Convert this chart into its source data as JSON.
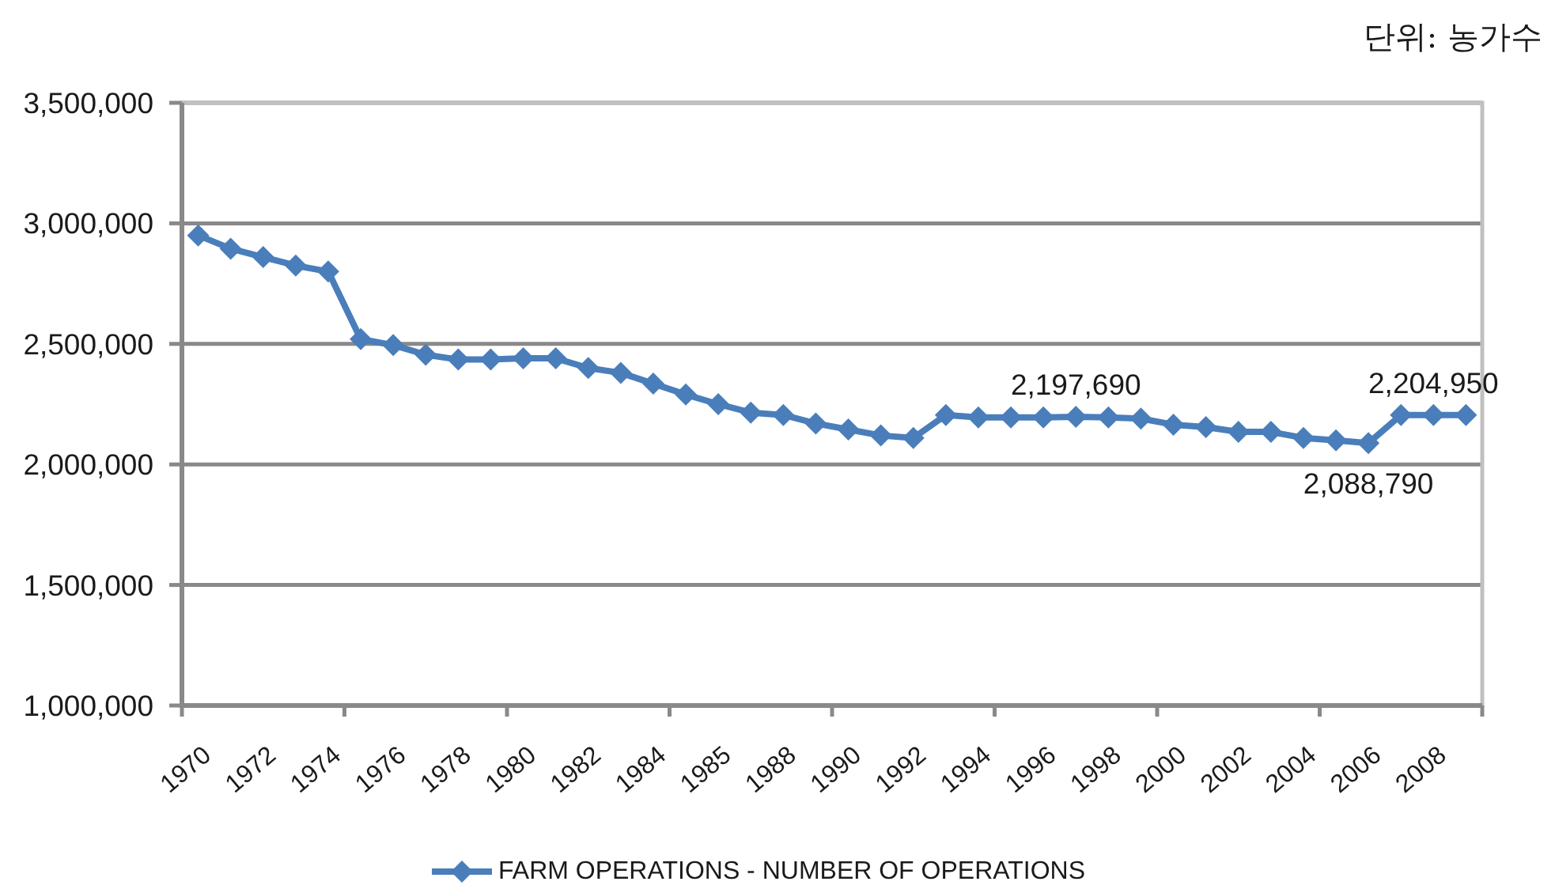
{
  "chart_data": {
    "type": "line",
    "annotations": [
      "단위: 농가수"
    ],
    "categories": [
      "1970",
      null,
      "1972",
      null,
      "1974",
      null,
      "1976",
      null,
      "1978",
      null,
      "1980",
      null,
      "1982",
      null,
      "1984",
      null,
      "1985",
      null,
      "1988",
      null,
      "1990",
      null,
      "1992",
      null,
      "1994",
      null,
      "1996",
      null,
      "1998",
      null,
      "2000",
      null,
      "2002",
      null,
      "2004",
      null,
      "2006",
      null,
      "2008",
      null
    ],
    "series": [
      {
        "name": "FARM OPERATIONS - NUMBER OF OPERATIONS",
        "color": "#4a7ebb",
        "values": [
          2950000,
          2895000,
          2860000,
          2825000,
          2800000,
          2520000,
          2495000,
          2455000,
          2435000,
          2435000,
          2440000,
          2440000,
          2400000,
          2380000,
          2335000,
          2290000,
          2250000,
          2215000,
          2205000,
          2170000,
          2145000,
          2120000,
          2110000,
          2205000,
          2195000,
          2195000,
          2195000,
          2197690,
          2195000,
          2190000,
          2165000,
          2155000,
          2135000,
          2135000,
          2110000,
          2100000,
          2088790,
          2205000,
          2204950,
          2205000
        ],
        "value_labels": [
          null,
          null,
          null,
          null,
          null,
          null,
          null,
          null,
          null,
          null,
          null,
          null,
          null,
          null,
          null,
          null,
          null,
          null,
          null,
          null,
          null,
          null,
          null,
          null,
          null,
          null,
          null,
          "2,197,690",
          null,
          null,
          null,
          null,
          null,
          null,
          null,
          null,
          "2,088,790",
          null,
          "2,204,950",
          null
        ]
      }
    ],
    "ylim": [
      1000000,
      3500000
    ],
    "yticks": [
      {
        "value": 1000000,
        "label": "1,000,000"
      },
      {
        "value": 1500000,
        "label": "1,500,000"
      },
      {
        "value": 2000000,
        "label": "2,000,000"
      },
      {
        "value": 2500000,
        "label": "2,500,000"
      },
      {
        "value": 3000000,
        "label": "3,000,000"
      },
      {
        "value": 3500000,
        "label": "3,500,000"
      }
    ],
    "grid": "y",
    "legend": "bottom",
    "marker": "diamond",
    "line_style": "solid"
  }
}
